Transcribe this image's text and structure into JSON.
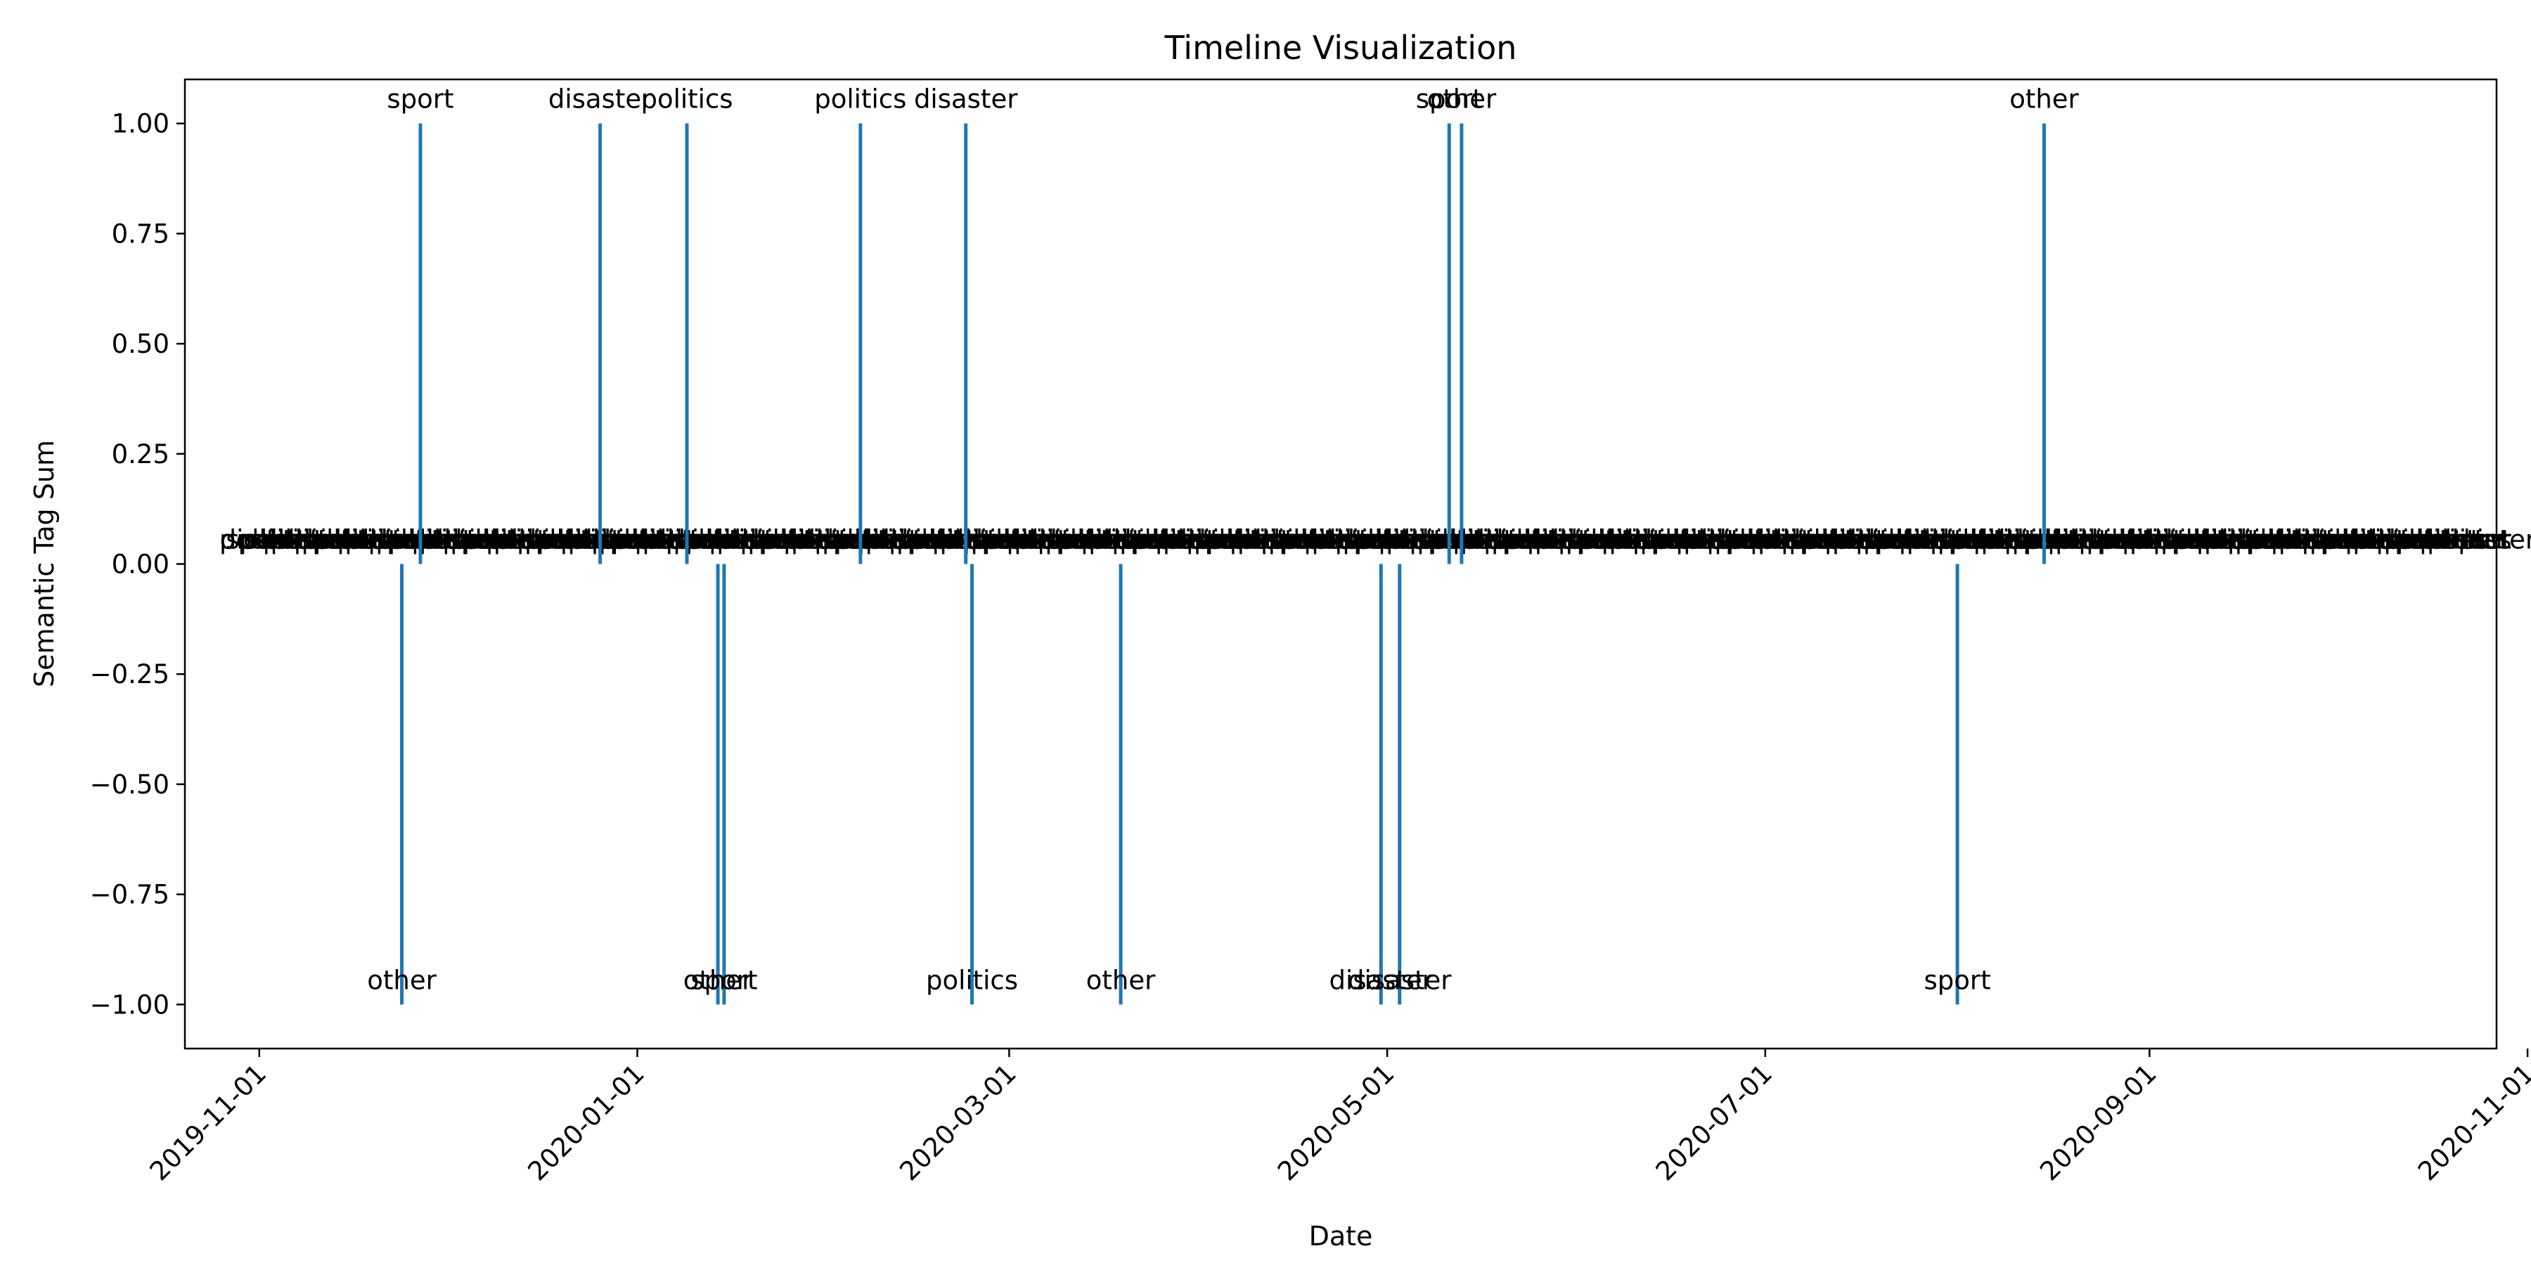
{
  "chart_data": {
    "type": "bar",
    "title": "Timeline Visualization",
    "xlabel": "Date",
    "ylabel": "Semantic Tag Sum",
    "xlim": [
      "2019-10-20",
      "2020-10-27"
    ],
    "ylim": [
      -1.1,
      1.1
    ],
    "x_ticks": [
      "2019-11-01",
      "2020-01-01",
      "2020-03-01",
      "2020-05-01",
      "2020-07-01",
      "2020-09-01",
      "2020-11-01"
    ],
    "y_ticks": [
      "1.00",
      "0.75",
      "0.50",
      "0.25",
      "0.00",
      "−0.25",
      "−0.50",
      "−0.75",
      "−1.00"
    ],
    "grid": false,
    "color": "#1f77b4",
    "events": [
      {
        "date": "2019-11-24",
        "value": -1,
        "label": "other"
      },
      {
        "date": "2019-11-27",
        "value": 1,
        "label": "sport"
      },
      {
        "date": "2019-12-26",
        "value": 1,
        "label": "disaster"
      },
      {
        "date": "2020-01-09",
        "value": 1,
        "label": "politics"
      },
      {
        "date": "2020-01-14",
        "value": -1,
        "label": "other"
      },
      {
        "date": "2020-01-15",
        "value": -1,
        "label": "sport"
      },
      {
        "date": "2020-02-06",
        "value": 1,
        "label": "politics"
      },
      {
        "date": "2020-02-23",
        "value": 1,
        "label": "disaster"
      },
      {
        "date": "2020-02-24",
        "value": -1,
        "label": "politics"
      },
      {
        "date": "2020-03-19",
        "value": -1,
        "label": "other"
      },
      {
        "date": "2020-04-30",
        "value": -1,
        "label": "disaster"
      },
      {
        "date": "2020-05-03",
        "value": -1,
        "label": "disaster"
      },
      {
        "date": "2020-05-11",
        "value": 1,
        "label": "sport"
      },
      {
        "date": "2020-05-13",
        "value": 1,
        "label": "other"
      },
      {
        "date": "2020-08-01",
        "value": -1,
        "label": "sport"
      },
      {
        "date": "2020-08-15",
        "value": 1,
        "label": "other"
      }
    ],
    "zero_labels": {
      "start": "2019-11-01",
      "end": "2020-10-25",
      "cycle": [
        "sport",
        "politics",
        "disaster",
        "other",
        "politics",
        "sport",
        "other",
        "disaster",
        "politics",
        "other",
        "sport",
        "disaster"
      ]
    }
  }
}
